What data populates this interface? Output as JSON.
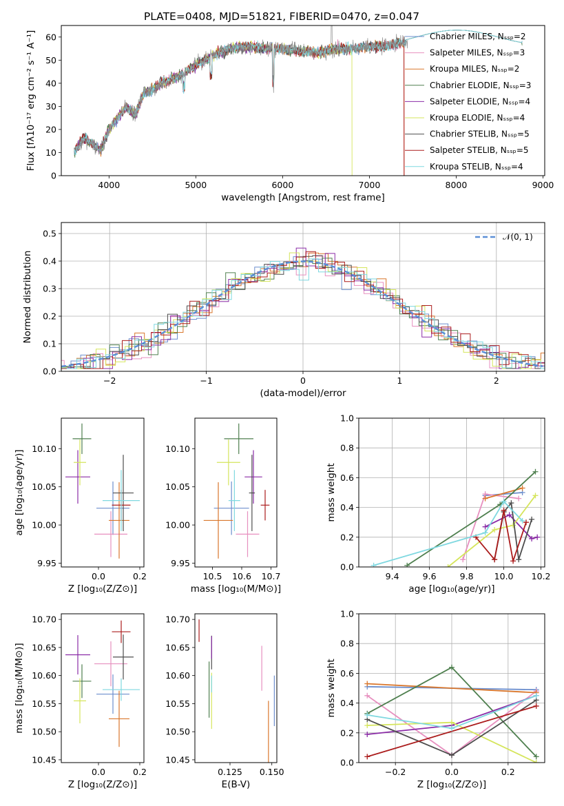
{
  "colors": {
    "Chabrier MILES": "#6c8ecd",
    "Salpeter MILES": "#e78fbf",
    "Kroupa MILES": "#d9762b",
    "Chabrier ELODIE": "#4e7f4e",
    "Salpeter ELODIE": "#8a2ba6",
    "Kroupa ELODIE": "#d5e55b",
    "Chabrier STELIB": "#4d4d4d",
    "Salpeter STELIB": "#ab1c1c",
    "Kroupa STELIB": "#7fd8e0"
  },
  "chart_data": [
    {
      "id": "spectrum",
      "type": "line",
      "title": "PLATE=0408, MJD=51821, FIBERID=0470, z=0.047",
      "xlabel": "wavelength [Angstrom, rest frame]",
      "ylabel": "Flux [fλ10⁻¹⁷ erg cm⁻² s⁻¹ A⁻¹]",
      "xlim": [
        3450,
        9020
      ],
      "ylim": [
        0,
        65
      ],
      "grid": false,
      "xticks": [
        4000,
        5000,
        6000,
        7000,
        8000,
        9000
      ],
      "yticks": [
        0,
        10,
        20,
        30,
        40,
        50,
        60
      ],
      "x": [
        3600,
        3700,
        3800,
        3900,
        4000,
        4100,
        4200,
        4300,
        4400,
        4500,
        4600,
        4800,
        5000,
        5200,
        5400,
        5600,
        5800,
        6000,
        6200,
        6400,
        6600,
        6800,
        7000,
        7200,
        7400
      ],
      "y": [
        10,
        16,
        14,
        11,
        20,
        25,
        30,
        26,
        36,
        37,
        40,
        43,
        48,
        52,
        55,
        56,
        55,
        55,
        54,
        53,
        55,
        55,
        56,
        56,
        58
      ],
      "legend_location": "upper right",
      "legend": [
        {
          "label": "Chabrier MILES, Nₛₛₚ=2"
        },
        {
          "label": "Salpeter MILES, Nₛₛₚ=3"
        },
        {
          "label": "Kroupa MILES, Nₛₛₚ=2"
        },
        {
          "label": "Chabrier ELODIE, Nₛₛₚ=3"
        },
        {
          "label": "Salpeter ELODIE, Nₛₛₚ=4"
        },
        {
          "label": "Kroupa ELODIE, Nₛₛₚ=4"
        },
        {
          "label": "Chabrier STELIB, Nₛₛₚ=5"
        },
        {
          "label": "Salpeter STELIB, Nₛₛₚ=5"
        },
        {
          "label": "Kroupa STELIB, Nₛₛₚ=4"
        }
      ]
    },
    {
      "id": "residuals",
      "type": "area",
      "xlabel": "(data-model)/error",
      "ylabel": "Normed distribution",
      "xlim": [
        -2.5,
        2.5
      ],
      "ylim": [
        0,
        0.54
      ],
      "grid": true,
      "xticks": [
        -2,
        -1,
        0,
        1,
        2
      ],
      "yticks": [
        0.0,
        0.1,
        0.2,
        0.3,
        0.4,
        0.5
      ],
      "reference_curve": {
        "label": "𝒩(0, 1)",
        "mean": 0,
        "sigma": 1
      },
      "legend_location": "upper right"
    },
    {
      "id": "age_vs_Z",
      "type": "scatter",
      "xlabel": "Z [log₁₀(Z/Z⊙)]",
      "ylabel": "age  [log₁₀(age/yr)]",
      "xlim": [
        -0.18,
        0.22
      ],
      "ylim": [
        9.945,
        10.14
      ],
      "grid": false,
      "xticks": [
        0.0,
        0.2
      ],
      "yticks": [
        9.95,
        10.0,
        10.05,
        10.1
      ],
      "points": [
        {
          "model": "Chabrier MILES",
          "x": 0.07,
          "xerr": 0.08,
          "y": 10.022,
          "yerr": 0.035
        },
        {
          "model": "Salpeter MILES",
          "x": 0.06,
          "xerr": 0.08,
          "y": 9.988,
          "yerr": 0.03
        },
        {
          "model": "Kroupa MILES",
          "x": 0.1,
          "xerr": 0.05,
          "y": 10.006,
          "yerr": 0.05
        },
        {
          "model": "Chabrier ELODIE",
          "x": -0.08,
          "xerr": 0.045,
          "y": 10.113,
          "yerr": 0.02
        },
        {
          "model": "Salpeter ELODIE",
          "x": -0.1,
          "xerr": 0.06,
          "y": 10.063,
          "yerr": 0.035
        },
        {
          "model": "Kroupa ELODIE",
          "x": -0.09,
          "xerr": 0.03,
          "y": 10.082,
          "yerr": 0.03
        },
        {
          "model": "Chabrier STELIB",
          "x": 0.12,
          "xerr": 0.05,
          "y": 10.042,
          "yerr": 0.05
        },
        {
          "model": "Salpeter STELIB",
          "x": 0.11,
          "xerr": 0.045,
          "y": 10.026,
          "yerr": 0.02
        },
        {
          "model": "Kroupa STELIB",
          "x": 0.11,
          "xerr": 0.09,
          "y": 10.032,
          "yerr": 0.04
        }
      ]
    },
    {
      "id": "age_vs_mass",
      "type": "scatter",
      "xlabel": "mass [log₁₀(M/M⊙)]",
      "ylabel": "",
      "xlim": [
        10.44,
        10.72
      ],
      "ylim": [
        9.945,
        10.14
      ],
      "grid": false,
      "xticks": [
        10.5,
        10.6,
        10.7
      ],
      "yticks": [
        9.95,
        10.0,
        10.05,
        10.1
      ],
      "points": [
        {
          "model": "Chabrier MILES",
          "x": 10.565,
          "xerr": 0.06,
          "y": 10.022,
          "yerr": 0.035
        },
        {
          "model": "Salpeter MILES",
          "x": 10.62,
          "xerr": 0.04,
          "y": 9.988,
          "yerr": 0.03
        },
        {
          "model": "Kroupa MILES",
          "x": 10.52,
          "xerr": 0.05,
          "y": 10.006,
          "yerr": 0.05
        },
        {
          "model": "Chabrier ELODIE",
          "x": 10.59,
          "xerr": 0.05,
          "y": 10.113,
          "yerr": 0.02
        },
        {
          "model": "Salpeter ELODIE",
          "x": 10.64,
          "xerr": 0.03,
          "y": 10.063,
          "yerr": 0.035
        },
        {
          "model": "Kroupa ELODIE",
          "x": 10.555,
          "xerr": 0.04,
          "y": 10.082,
          "yerr": 0.03
        },
        {
          "model": "Chabrier STELIB",
          "x": 10.635,
          "xerr": 0.01,
          "y": 10.042,
          "yerr": 0.05
        },
        {
          "model": "Salpeter STELIB",
          "x": 10.68,
          "xerr": 0.015,
          "y": 10.026,
          "yerr": 0.02
        },
        {
          "model": "Kroupa STELIB",
          "x": 10.575,
          "xerr": 0.02,
          "y": 10.032,
          "yerr": 0.04
        }
      ]
    },
    {
      "id": "weight_vs_age",
      "type": "line",
      "xlabel": "age  [log₁₀(age/yr)]",
      "ylabel": "mass weight",
      "xlim": [
        9.22,
        10.22
      ],
      "ylim": [
        0,
        1.0
      ],
      "grid": true,
      "xticks": [
        9.4,
        9.6,
        9.8,
        10.0,
        10.2
      ],
      "yticks": [
        0.0,
        0.2,
        0.4,
        0.6,
        0.8,
        1.0
      ],
      "series": [
        {
          "model": "Chabrier MILES",
          "x": [
            9.9,
            10.1
          ],
          "y": [
            0.48,
            0.5
          ]
        },
        {
          "model": "Salpeter MILES",
          "x": [
            9.78,
            9.9,
            10.08
          ],
          "y": [
            0.05,
            0.49,
            0.46
          ]
        },
        {
          "model": "Kroupa MILES",
          "x": [
            9.9,
            10.1
          ],
          "y": [
            0.46,
            0.53
          ]
        },
        {
          "model": "Chabrier ELODIE",
          "x": [
            9.48,
            9.98,
            10.17
          ],
          "y": [
            0.01,
            0.42,
            0.64
          ]
        },
        {
          "model": "Salpeter ELODIE",
          "x": [
            9.9,
            10.03,
            10.15,
            10.18
          ],
          "y": [
            0.27,
            0.35,
            0.19,
            0.2
          ]
        },
        {
          "model": "Kroupa ELODIE",
          "x": [
            9.7,
            9.95,
            10.05,
            10.17
          ],
          "y": [
            0.0,
            0.25,
            0.28,
            0.48
          ]
        },
        {
          "model": "Chabrier STELIB",
          "x": [
            9.95,
            10.0,
            10.04,
            10.08,
            10.15
          ],
          "y": [
            0.05,
            0.37,
            0.43,
            0.05,
            0.32
          ]
        },
        {
          "model": "Salpeter STELIB",
          "x": [
            9.85,
            9.95,
            10.0,
            10.05,
            10.12
          ],
          "y": [
            0.2,
            0.05,
            0.38,
            0.04,
            0.3
          ]
        },
        {
          "model": "Kroupa STELIB",
          "x": [
            9.3,
            9.9,
            10.0,
            10.1
          ],
          "y": [
            0.01,
            0.23,
            0.44,
            0.31
          ]
        }
      ]
    },
    {
      "id": "mass_vs_Z",
      "type": "scatter",
      "xlabel": "Z [log₁₀(Z/Z⊙)]",
      "ylabel": "mass [log₁₀(M/M⊙)]",
      "xlim": [
        -0.18,
        0.22
      ],
      "ylim": [
        10.445,
        10.71
      ],
      "grid": false,
      "xticks": [
        0.0,
        0.2
      ],
      "yticks": [
        10.45,
        10.5,
        10.55,
        10.6,
        10.65,
        10.7
      ],
      "points": [
        {
          "model": "Chabrier MILES",
          "x": 0.07,
          "xerr": 0.08,
          "y": 10.567,
          "yerr": 0.035
        },
        {
          "model": "Salpeter MILES",
          "x": 0.06,
          "xerr": 0.08,
          "y": 10.621,
          "yerr": 0.04
        },
        {
          "model": "Kroupa MILES",
          "x": 0.1,
          "xerr": 0.05,
          "y": 10.523,
          "yerr": 0.05
        },
        {
          "model": "Chabrier ELODIE",
          "x": -0.08,
          "xerr": 0.045,
          "y": 10.59,
          "yerr": 0.03
        },
        {
          "model": "Salpeter ELODIE",
          "x": -0.1,
          "xerr": 0.06,
          "y": 10.637,
          "yerr": 0.035
        },
        {
          "model": "Kroupa ELODIE",
          "x": -0.09,
          "xerr": 0.03,
          "y": 10.555,
          "yerr": 0.04
        },
        {
          "model": "Chabrier STELIB",
          "x": 0.12,
          "xerr": 0.05,
          "y": 10.633,
          "yerr": 0.04
        },
        {
          "model": "Salpeter STELIB",
          "x": 0.11,
          "xerr": 0.045,
          "y": 10.678,
          "yerr": 0.02
        },
        {
          "model": "Kroupa STELIB",
          "x": 0.11,
          "xerr": 0.09,
          "y": 10.575,
          "yerr": 0.02
        }
      ]
    },
    {
      "id": "mass_vs_ebv",
      "type": "scatter",
      "xlabel": "E(B-V)",
      "ylabel": "",
      "xlim": [
        0.104,
        0.153
      ],
      "ylim": [
        10.445,
        10.71
      ],
      "grid": false,
      "xticks": [
        0.125,
        0.15
      ],
      "yticks": [
        10.45,
        10.5,
        10.55,
        10.6,
        10.65,
        10.7
      ],
      "points": [
        {
          "model": "Salpeter STELIB",
          "x": 0.1065,
          "y": 10.68,
          "yerr": 0.02
        },
        {
          "model": "Chabrier ELODIE",
          "x": 0.1125,
          "y": 10.575,
          "yerr": 0.05
        },
        {
          "model": "Chabrier STELIB",
          "x": 0.114,
          "y": 10.641,
          "yerr": 0.03
        },
        {
          "model": "Salpeter ELODIE",
          "x": 0.114,
          "y": 10.65,
          "yerr": 0.02
        },
        {
          "model": "Kroupa ELODIE",
          "x": 0.114,
          "y": 10.555,
          "yerr": 0.05
        },
        {
          "model": "Kroupa STELIB",
          "x": 0.114,
          "y": 10.585,
          "yerr": 0.015
        },
        {
          "model": "Salpeter MILES",
          "x": 0.144,
          "y": 10.613,
          "yerr": 0.04
        },
        {
          "model": "Kroupa MILES",
          "x": 0.148,
          "y": 10.5,
          "yerr": 0.055
        },
        {
          "model": "Chabrier MILES",
          "x": 0.1515,
          "y": 10.555,
          "yerr": 0.045
        }
      ]
    },
    {
      "id": "weight_vs_Z",
      "type": "line",
      "xlabel": "Z [log₁₀(Z/Z⊙)]",
      "ylabel": "mass weight",
      "xlim": [
        -0.33,
        0.33
      ],
      "ylim": [
        0,
        1.0
      ],
      "grid": true,
      "xticks": [
        -0.2,
        0.0,
        0.2
      ],
      "yticks": [
        0.0,
        0.2,
        0.4,
        0.6,
        0.8,
        1.0
      ],
      "series": [
        {
          "model": "Chabrier MILES",
          "x": [
            -0.3,
            0.3
          ],
          "y": [
            0.51,
            0.49
          ]
        },
        {
          "model": "Salpeter MILES",
          "x": [
            -0.3,
            0.0,
            0.3
          ],
          "y": [
            0.45,
            0.05,
            0.48
          ]
        },
        {
          "model": "Kroupa MILES",
          "x": [
            -0.3,
            0.3
          ],
          "y": [
            0.53,
            0.47
          ]
        },
        {
          "model": "Chabrier ELODIE",
          "x": [
            -0.3,
            0.0,
            0.3
          ],
          "y": [
            0.33,
            0.64,
            0.04
          ]
        },
        {
          "model": "Salpeter ELODIE",
          "x": [
            -0.3,
            0.0,
            0.3
          ],
          "y": [
            0.19,
            0.25,
            0.45
          ]
        },
        {
          "model": "Kroupa ELODIE",
          "x": [
            -0.3,
            0.0,
            0.3
          ],
          "y": [
            0.25,
            0.27,
            0.0
          ]
        },
        {
          "model": "Chabrier STELIB",
          "x": [
            -0.3,
            0.0,
            0.3
          ],
          "y": [
            0.29,
            0.05,
            0.42
          ]
        },
        {
          "model": "Salpeter STELIB",
          "x": [
            -0.3,
            0.3
          ],
          "y": [
            0.04,
            0.38
          ]
        },
        {
          "model": "Kroupa STELIB",
          "x": [
            -0.3,
            0.0,
            0.3
          ],
          "y": [
            0.32,
            0.23,
            0.45
          ]
        }
      ]
    }
  ]
}
